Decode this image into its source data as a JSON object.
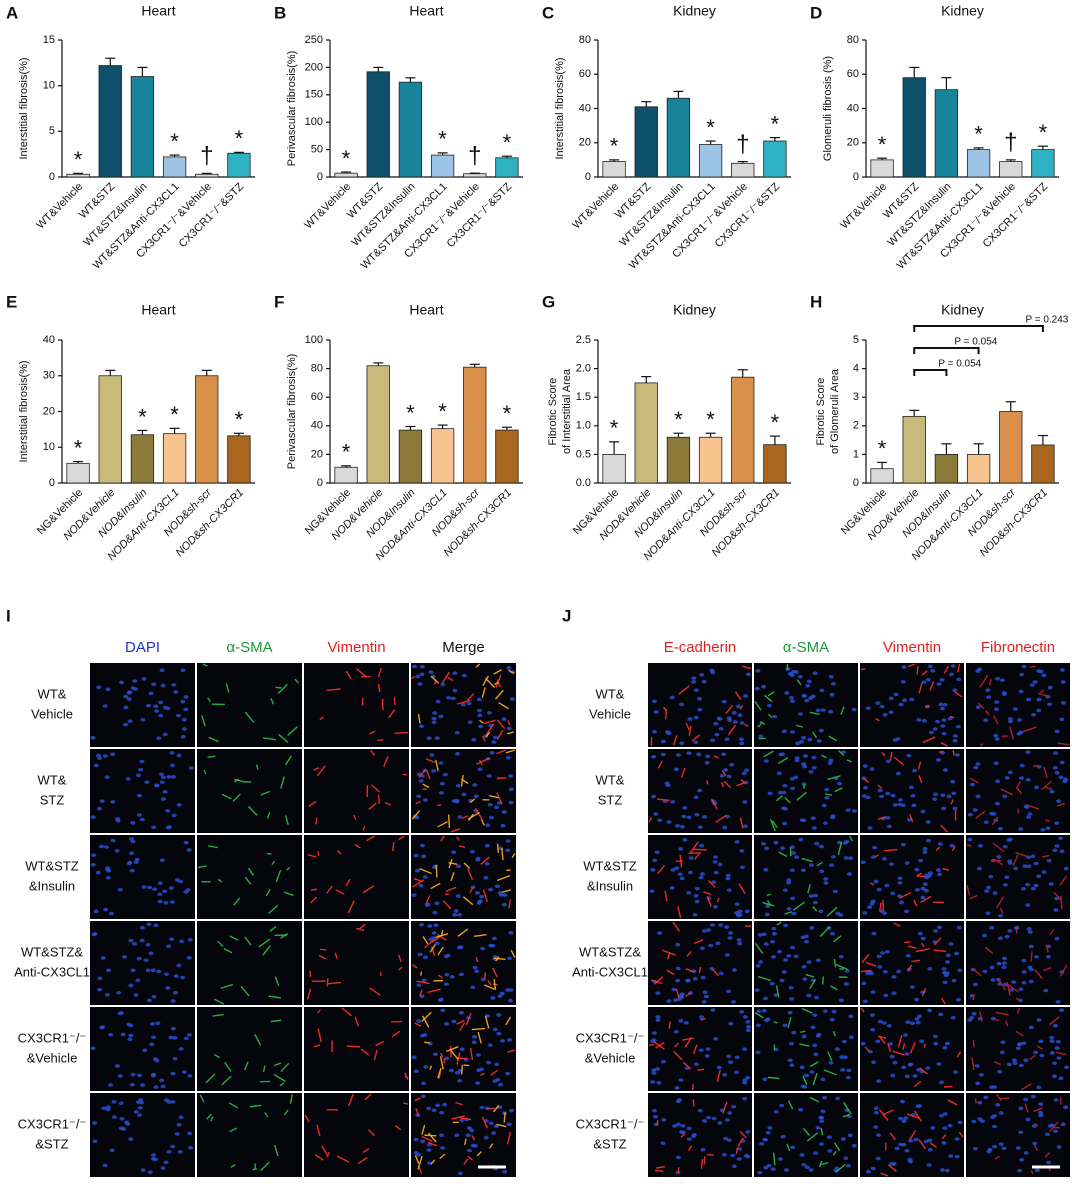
{
  "chart_data": [
    {
      "type": "bar",
      "panel": "A",
      "title": "Heart",
      "y_label": [
        "Interstitial fibrosis(%)"
      ],
      "categories": [
        "WT&Vehicle",
        "WT&STZ",
        "WT&STZ&Insulin",
        "WT&STZ&Anti-CX3CL1",
        "CX3CR1⁻/⁻&Vehicle",
        "CX3CR1⁻/⁻&STZ"
      ],
      "values": [
        0.3,
        12.2,
        11,
        2.2,
        0.3,
        2.6
      ],
      "errors": [
        0.1,
        0.8,
        1.0,
        0.2,
        0.1,
        0.1
      ],
      "colors": [
        "#d9d9d9",
        "#0e4f6c",
        "#17849c",
        "#9dc3e6",
        "#d9d9d9",
        "#2fb3c4"
      ],
      "ylim": [
        0,
        15
      ],
      "yticks": [
        0,
        5,
        10,
        15
      ],
      "annotations": [
        {
          "text": "*",
          "index": 0
        },
        {
          "text": "*",
          "index": 3
        },
        {
          "text": "†",
          "index": 4
        },
        {
          "text": "*",
          "index": 5
        }
      ]
    },
    {
      "type": "bar",
      "panel": "B",
      "title": "Heart",
      "y_label": [
        "Perivascular fibrosis(%)"
      ],
      "categories": [
        "WT&Vehicle",
        "WT&STZ",
        "WT&STZ&Insulin",
        "WT&STZ&Anti-CX3CL1",
        "CX3CR1⁻/⁻&Vehicle",
        "CX3CR1⁻/⁻&STZ"
      ],
      "values": [
        7,
        192,
        173,
        40,
        6,
        35
      ],
      "errors": [
        2,
        8,
        8,
        4,
        1,
        3
      ],
      "colors": [
        "#d9d9d9",
        "#0e4f6c",
        "#17849c",
        "#9dc3e6",
        "#d9d9d9",
        "#2fb3c4"
      ],
      "ylim": [
        0,
        250
      ],
      "yticks": [
        0,
        50,
        100,
        150,
        200,
        250
      ],
      "annotations": [
        {
          "text": "*",
          "index": 0
        },
        {
          "text": "*",
          "index": 3
        },
        {
          "text": "†",
          "index": 4
        },
        {
          "text": "*",
          "index": 5
        }
      ]
    },
    {
      "type": "bar",
      "panel": "C",
      "title": "Kidney",
      "y_label": [
        "Interstitial fibrosis(%)"
      ],
      "categories": [
        "WT&Vehicle",
        "WT&STZ",
        "WT&STZ&Insulin",
        "WT&STZ&Anti-CX3CL1",
        "CX3CR1⁻/⁻&Vehicle",
        "CX3CR1⁻/⁻&STZ"
      ],
      "values": [
        9,
        41,
        46,
        19,
        8,
        21
      ],
      "errors": [
        1,
        3,
        4,
        2,
        1,
        2
      ],
      "colors": [
        "#d9d9d9",
        "#0e4f6c",
        "#17849c",
        "#9dc3e6",
        "#d9d9d9",
        "#2fb3c4"
      ],
      "ylim": [
        0,
        80
      ],
      "yticks": [
        0,
        20,
        40,
        60,
        80
      ],
      "annotations": [
        {
          "text": "*",
          "index": 0
        },
        {
          "text": "*",
          "index": 3
        },
        {
          "text": "†",
          "index": 4
        },
        {
          "text": "*",
          "index": 5
        }
      ]
    },
    {
      "type": "bar",
      "panel": "D",
      "title": "Kidney",
      "y_label": [
        "Glomeruli fibrosis (%)"
      ],
      "categories": [
        "WT&Vehicle",
        "WT&STZ",
        "WT&STZ&Insulin",
        "WT&STZ&Anti-CX3CL1",
        "CX3CR1⁻/⁻&Vehicle",
        "CX3CR1⁻/⁻&STZ"
      ],
      "values": [
        10,
        58,
        51,
        16,
        9,
        16
      ],
      "errors": [
        1,
        6,
        7,
        1,
        1,
        2
      ],
      "colors": [
        "#d9d9d9",
        "#0e4f6c",
        "#17849c",
        "#9dc3e6",
        "#d9d9d9",
        "#2fb3c4"
      ],
      "ylim": [
        0,
        80
      ],
      "yticks": [
        0,
        20,
        40,
        60,
        80
      ],
      "annotations": [
        {
          "text": "*",
          "index": 0
        },
        {
          "text": "*",
          "index": 3
        },
        {
          "text": "†",
          "index": 4
        },
        {
          "text": "*",
          "index": 5
        }
      ]
    },
    {
      "type": "bar",
      "panel": "E",
      "title": "Heart",
      "y_label": [
        "Interstitial fibrosis(%)"
      ],
      "categories": [
        "NG&Vehicle",
        "NOD&Vehicle",
        "NOD&Insulin",
        "NOD&Anti-CX3CL1",
        "NOD&sh-scr",
        "NOD&sh-CX3CR1"
      ],
      "values": [
        5.5,
        30,
        13.5,
        13.8,
        30,
        13.2
      ],
      "errors": [
        0.5,
        1.5,
        1.2,
        1.5,
        1.5,
        0.7
      ],
      "colors": [
        "#d9d9d9",
        "#c9b97a",
        "#8b7a3a",
        "#f7c38f",
        "#d9904a",
        "#a8661e"
      ],
      "ylim": [
        0,
        40
      ],
      "yticks": [
        0,
        10,
        20,
        30,
        40
      ],
      "annotations": [
        {
          "text": "*",
          "index": 0
        },
        {
          "text": "*",
          "index": 2
        },
        {
          "text": "*",
          "index": 3
        },
        {
          "text": "*",
          "index": 5
        }
      ]
    },
    {
      "type": "bar",
      "panel": "F",
      "title": "Heart",
      "y_label": [
        "Perivascular fibrosis(%)"
      ],
      "categories": [
        "NG&Vehicle",
        "NOD&Vehicle",
        "NOD&Insulin",
        "NOD&Anti-CX3CL1",
        "NOD&sh-scr",
        "NOD&sh-CX3CR1"
      ],
      "values": [
        11,
        82,
        37,
        38,
        81,
        37
      ],
      "errors": [
        1,
        2,
        2.5,
        2.5,
        2,
        2
      ],
      "colors": [
        "#d9d9d9",
        "#c9b97a",
        "#8b7a3a",
        "#f7c38f",
        "#d9904a",
        "#a8661e"
      ],
      "ylim": [
        0,
        100
      ],
      "yticks": [
        0,
        20,
        40,
        60,
        80,
        100
      ],
      "annotations": [
        {
          "text": "*",
          "index": 0
        },
        {
          "text": "*",
          "index": 2
        },
        {
          "text": "*",
          "index": 3
        },
        {
          "text": "*",
          "index": 5
        }
      ]
    },
    {
      "type": "bar",
      "panel": "G",
      "title": "Kidney",
      "y_label": [
        "Fibrotic Score",
        "of Interstitial Area"
      ],
      "categories": [
        "NG&Vehicle",
        "NOD&Vehicle",
        "NOD&Insulin",
        "NOD&Anti-CX3CL1",
        "NOD&sh-scr",
        "NOD&sh-CX3CR1"
      ],
      "values": [
        0.5,
        1.75,
        0.8,
        0.8,
        1.85,
        0.67
      ],
      "errors": [
        0.22,
        0.11,
        0.07,
        0.07,
        0.13,
        0.15
      ],
      "colors": [
        "#d9d9d9",
        "#c9b97a",
        "#8b7a3a",
        "#f7c38f",
        "#d9904a",
        "#a8661e"
      ],
      "ylim": [
        0,
        2.5
      ],
      "yticks": [
        {
          "value": 0,
          "label": "0.0"
        },
        0.5,
        {
          "value": 1,
          "label": "1.0"
        },
        1.5,
        {
          "value": 2,
          "label": "2.0"
        },
        2.5
      ],
      "annotations": [
        {
          "text": "*",
          "index": 0
        },
        {
          "text": "*",
          "index": 2
        },
        {
          "text": "*",
          "index": 3
        },
        {
          "text": "*",
          "index": 5
        }
      ]
    },
    {
      "type": "bar",
      "panel": "H",
      "title": "Kidney",
      "y_label": [
        "Fibrotic Score",
        "of Glomeruli Area"
      ],
      "categories": [
        "NG&Vehicle",
        "NOD&Vehicle",
        "NOD&Insulin",
        "NOD&Anti-CX3CL1",
        "NOD&sh-scr",
        "NOD&sh-CX3CR1"
      ],
      "values": [
        0.5,
        2.33,
        1.0,
        1.0,
        2.5,
        1.33
      ],
      "errors": [
        0.22,
        0.21,
        0.37,
        0.37,
        0.34,
        0.33
      ],
      "colors": [
        "#d9d9d9",
        "#c9b97a",
        "#8b7a3a",
        "#f7c38f",
        "#d9904a",
        "#a8661e"
      ],
      "ylim": [
        0,
        5
      ],
      "yticks": [
        0,
        1,
        2,
        3,
        4,
        5
      ],
      "annotations": [
        {
          "text": "*",
          "index": 0
        },
        {
          "text": "P = 0.243",
          "from": 1,
          "to": 5
        },
        {
          "text": "P = 0.054",
          "from": 1,
          "to": 3
        },
        {
          "text": "P = 0.054",
          "from": 1,
          "to": 2
        }
      ]
    }
  ],
  "image_panels": [
    {
      "letter": "I",
      "columns": [
        "DAPI",
        "α-SMA",
        "Vimentin",
        "Merge"
      ],
      "column_colors": [
        "#2233bb",
        "#1a9a3a",
        "#e02020",
        "#111111"
      ],
      "rows": [
        [
          "WT&",
          "Vehicle"
        ],
        [
          "WT&",
          "STZ"
        ],
        [
          "WT&STZ",
          "&Insulin"
        ],
        [
          "WT&STZ&",
          "Anti-CX3CL1"
        ],
        [
          "CX3CR1⁻/⁻",
          "&Vehicle"
        ],
        [
          "CX3CR1⁻/⁻",
          "&STZ"
        ]
      ]
    },
    {
      "letter": "J",
      "columns": [
        "E-cadherin",
        "α-SMA",
        "Vimentin",
        "Fibronectin"
      ],
      "column_colors": [
        "#e02020",
        "#1a9a3a",
        "#e02020",
        "#e02020"
      ],
      "rows": [
        [
          "WT&",
          "Vehicle"
        ],
        [
          "WT&",
          "STZ"
        ],
        [
          "WT&STZ",
          "&Insulin"
        ],
        [
          "WT&STZ&",
          "Anti-CX3CL1"
        ],
        [
          "CX3CR1⁻/⁻",
          "&Vehicle"
        ],
        [
          "CX3CR1⁻/⁻",
          "&STZ"
        ]
      ]
    }
  ]
}
